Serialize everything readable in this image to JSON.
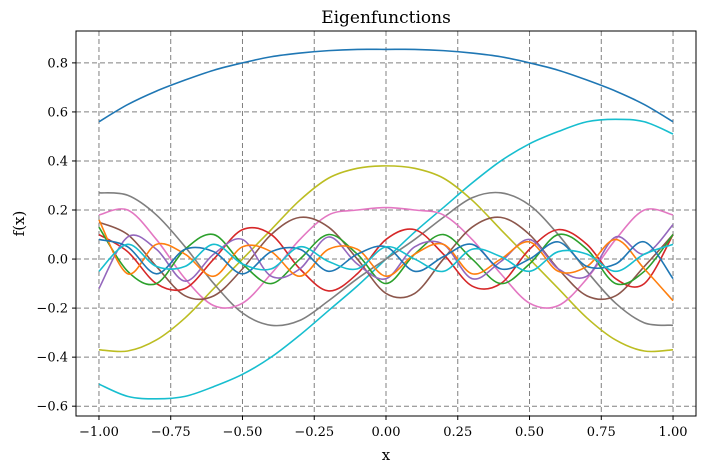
{
  "chart_data": {
    "type": "line",
    "title": "Eigenfunctions",
    "xlabel": "x",
    "ylabel": "f(x)",
    "xlim": [
      -1.08,
      1.08
    ],
    "ylim": [
      -0.64,
      0.93
    ],
    "grid": true,
    "legend": "none",
    "x_ticks": [
      -1.0,
      -0.75,
      -0.5,
      -0.25,
      0.0,
      0.25,
      0.5,
      0.75,
      1.0
    ],
    "x_tick_labels": [
      "−1.00",
      "−0.75",
      "−0.50",
      "−0.25",
      "0.00",
      "0.25",
      "0.50",
      "0.75",
      "1.00"
    ],
    "y_ticks": [
      -0.6,
      -0.4,
      -0.2,
      0.0,
      0.2,
      0.4,
      0.6,
      0.8
    ],
    "y_tick_labels": [
      "−0.6",
      "−0.4",
      "−0.2",
      "0.0",
      "0.2",
      "0.4",
      "0.6",
      "0.8"
    ],
    "x": [
      -1.0,
      -0.9,
      -0.8,
      -0.7,
      -0.6,
      -0.5,
      -0.4,
      -0.3,
      -0.2,
      -0.1,
      0.0,
      0.1,
      0.2,
      0.3,
      0.4,
      0.5,
      0.6,
      0.7,
      0.8,
      0.9,
      1.0
    ],
    "series": [
      {
        "color": "#1f77b4",
        "values": [
          0.56,
          0.63,
          0.685,
          0.73,
          0.77,
          0.8,
          0.825,
          0.84,
          0.85,
          0.855,
          0.855,
          0.855,
          0.85,
          0.84,
          0.825,
          0.8,
          0.77,
          0.73,
          0.685,
          0.63,
          0.56
        ]
      },
      {
        "color": "#17becf",
        "values": [
          -0.51,
          -0.56,
          -0.57,
          -0.56,
          -0.52,
          -0.47,
          -0.4,
          -0.31,
          -0.21,
          -0.11,
          0.0,
          0.11,
          0.21,
          0.31,
          0.4,
          0.47,
          0.52,
          0.56,
          0.57,
          0.56,
          0.51
        ]
      },
      {
        "color": "#bcbd22",
        "values": [
          -0.37,
          -0.375,
          -0.33,
          -0.24,
          -0.12,
          0.0,
          0.12,
          0.24,
          0.33,
          0.37,
          0.38,
          0.37,
          0.33,
          0.24,
          0.12,
          0.0,
          -0.12,
          -0.24,
          -0.33,
          -0.375,
          -0.37
        ]
      },
      {
        "color": "#7f7f7f",
        "values": [
          0.27,
          0.26,
          0.18,
          0.05,
          -0.1,
          -0.22,
          -0.27,
          -0.25,
          -0.17,
          -0.08,
          0.0,
          0.08,
          0.17,
          0.25,
          0.27,
          0.22,
          0.1,
          -0.05,
          -0.18,
          -0.26,
          -0.27
        ]
      },
      {
        "color": "#e377c2",
        "values": [
          0.18,
          0.2,
          0.08,
          -0.08,
          -0.19,
          -0.18,
          -0.06,
          0.08,
          0.18,
          0.2,
          0.21,
          0.2,
          0.18,
          0.08,
          -0.06,
          -0.18,
          -0.19,
          -0.08,
          0.08,
          0.2,
          0.18
        ]
      },
      {
        "color": "#8c564b",
        "values": [
          0.15,
          0.1,
          -0.03,
          -0.15,
          -0.15,
          -0.04,
          0.1,
          0.17,
          0.13,
          0.0,
          -0.14,
          -0.14,
          0.0,
          0.13,
          0.17,
          0.1,
          -0.04,
          -0.15,
          -0.15,
          -0.03,
          0.1
        ]
      },
      {
        "color": "#d62728",
        "values": [
          0.1,
          0.03,
          -0.1,
          -0.12,
          0.0,
          0.12,
          0.1,
          -0.04,
          -0.13,
          -0.06,
          0.08,
          0.12,
          0.02,
          -0.11,
          -0.1,
          0.04,
          0.12,
          0.06,
          -0.08,
          -0.1,
          0.1
        ]
      },
      {
        "color": "#2ca02c",
        "values": [
          0.13,
          -0.05,
          -0.1,
          0.04,
          0.1,
          -0.02,
          -0.1,
          0.0,
          0.1,
          0.02,
          -0.1,
          0.02,
          0.1,
          0.0,
          -0.1,
          -0.02,
          0.1,
          0.04,
          -0.1,
          -0.05,
          0.1
        ]
      },
      {
        "color": "#9467bd",
        "values": [
          -0.12,
          0.09,
          0.04,
          -0.09,
          0.02,
          0.08,
          -0.07,
          -0.04,
          0.09,
          -0.02,
          -0.08,
          0.05,
          0.06,
          -0.08,
          -0.01,
          0.08,
          -0.04,
          -0.07,
          0.09,
          0.02,
          0.14
        ]
      },
      {
        "color": "#ff7f0e",
        "values": [
          0.16,
          -0.06,
          0.06,
          0.02,
          -0.07,
          0.05,
          0.03,
          -0.07,
          0.04,
          0.04,
          -0.07,
          0.02,
          0.06,
          -0.06,
          0.0,
          0.07,
          -0.05,
          -0.03,
          0.08,
          -0.04,
          -0.17
        ]
      },
      {
        "color": "#1f77b4",
        "values": [
          0.08,
          0.05,
          -0.06,
          0.04,
          0.03,
          -0.06,
          0.03,
          0.04,
          -0.05,
          0.02,
          0.05,
          -0.05,
          0.01,
          0.06,
          -0.04,
          0.0,
          0.07,
          -0.03,
          -0.02,
          0.07,
          -0.08
        ]
      },
      {
        "color": "#17becf",
        "values": [
          -0.05,
          0.06,
          -0.03,
          -0.03,
          0.06,
          -0.02,
          -0.04,
          0.05,
          -0.01,
          -0.04,
          0.05,
          0.0,
          -0.05,
          0.04,
          0.01,
          -0.05,
          0.03,
          0.02,
          -0.05,
          0.02,
          0.06
        ]
      }
    ]
  }
}
